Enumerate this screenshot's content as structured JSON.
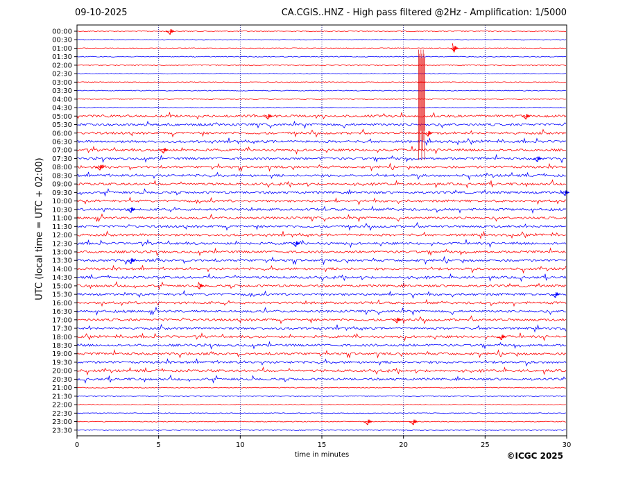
{
  "header": {
    "date": "09-10-2025",
    "title": "CA.CGIS..HNZ - High pass filtered @2Hz - Amplification: 1/5000"
  },
  "footer": {
    "copyright": "©ICGC 2025"
  },
  "colors": {
    "trace_a": "#ff0000",
    "trace_b": "#0000ff",
    "grid": "#00008b"
  },
  "chart_data": {
    "type": "line",
    "xlabel": "time in minutes",
    "ylabel": "UTC (local time = UTC + 02:00)",
    "xlim": [
      0,
      30
    ],
    "x_ticks": [
      "0",
      "5",
      "10",
      "15",
      "20",
      "25",
      "30"
    ],
    "grid": "vertical dotted at 5, 10, 15, 20, 25",
    "categories": [
      "00:00",
      "00:30",
      "01:00",
      "01:30",
      "02:00",
      "02:30",
      "03:00",
      "03:30",
      "04:00",
      "04:30",
      "05:00",
      "05:30",
      "06:00",
      "06:30",
      "07:00",
      "07:30",
      "08:00",
      "08:30",
      "09:00",
      "09:30",
      "10:00",
      "10:30",
      "11:00",
      "11:30",
      "12:00",
      "12:30",
      "13:00",
      "13:30",
      "14:00",
      "14:30",
      "15:00",
      "15:30",
      "16:00",
      "16:30",
      "17:00",
      "17:30",
      "18:00",
      "18:30",
      "19:00",
      "19:30",
      "20:00",
      "20:30",
      "21:00",
      "21:30",
      "22:00",
      "22:30",
      "23:00",
      "23:30"
    ],
    "series_colors": "alternating red / blue per row",
    "events": [
      {
        "row": "00:00",
        "minute": 5.7
      },
      {
        "row": "01:00",
        "minute": 23.1
      },
      {
        "row": "03:00",
        "minute": 21.1
      },
      {
        "row": "05:00",
        "minute": 11.7
      },
      {
        "row": "05:00",
        "minute": 27.5
      },
      {
        "row": "06:00",
        "minute": 21.5
      },
      {
        "row": "07:00",
        "minute": 5.3
      },
      {
        "row": "07:30",
        "minute": 28.2
      },
      {
        "row": "08:00",
        "minute": 1.4
      },
      {
        "row": "09:30",
        "minute": 29.9
      },
      {
        "row": "10:30",
        "minute": 3.3
      },
      {
        "row": "12:30",
        "minute": 13.4
      },
      {
        "row": "13:30",
        "minute": 3.3
      },
      {
        "row": "15:00",
        "minute": 7.5
      },
      {
        "row": "15:30",
        "minute": 29.3
      },
      {
        "row": "17:00",
        "minute": 19.6
      },
      {
        "row": "18:00",
        "minute": 26.0
      },
      {
        "row": "23:00",
        "minute": 17.8
      },
      {
        "row": "23:00",
        "minute": 20.6
      }
    ]
  }
}
